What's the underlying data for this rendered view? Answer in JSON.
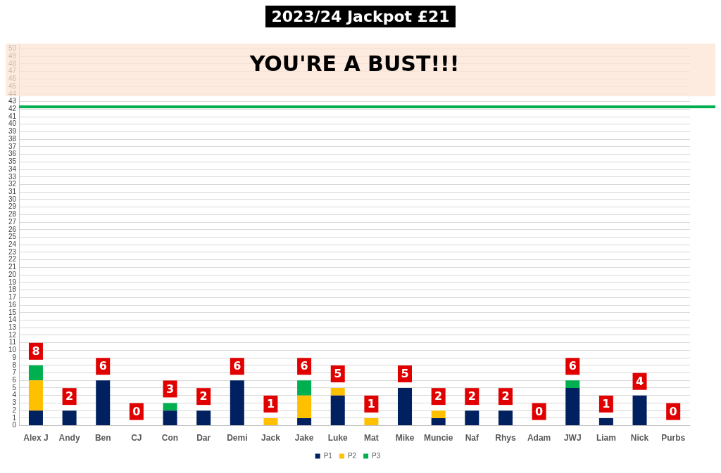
{
  "chart_data": {
    "type": "bar",
    "title": "2023/24 Jackpot £21",
    "stacked": true,
    "categories": [
      "Alex J",
      "Andy",
      "Ben",
      "CJ",
      "Con",
      "Dar",
      "Demi",
      "Jack",
      "Jake",
      "Luke",
      "Mat",
      "Mike",
      "Muncie",
      "Naf",
      "Rhys",
      "Adam",
      "JWJ",
      "Liam",
      "Nick",
      "Purbs"
    ],
    "series": [
      {
        "name": "P1",
        "color": "#002060",
        "values": [
          2,
          2,
          6,
          0,
          2,
          2,
          6,
          0,
          1,
          4,
          0,
          5,
          1,
          2,
          2,
          0,
          5,
          1,
          4,
          0
        ]
      },
      {
        "name": "P2",
        "color": "#ffc000",
        "values": [
          4,
          0,
          0,
          0,
          0,
          0,
          0,
          1,
          3,
          1,
          1,
          0,
          1,
          0,
          0,
          0,
          0,
          0,
          0,
          0
        ]
      },
      {
        "name": "P3",
        "color": "#00b050",
        "values": [
          2,
          0,
          0,
          0,
          1,
          0,
          0,
          0,
          2,
          0,
          0,
          0,
          0,
          0,
          0,
          0,
          1,
          0,
          0,
          0
        ]
      }
    ],
    "totals": [
      "8",
      "2",
      "6",
      "0",
      "3",
      "2",
      "6",
      "1",
      "6",
      "5",
      "1",
      "5",
      "2",
      "2",
      "2",
      "0",
      "6",
      "1",
      "4",
      "0"
    ],
    "ylim": [
      0,
      50.7
    ],
    "yticks": [
      0,
      1,
      2,
      3,
      4,
      5,
      6,
      7,
      8,
      9,
      10,
      11,
      12,
      13,
      14,
      15,
      16,
      17,
      18,
      19,
      20,
      21,
      22,
      23,
      24,
      25,
      26,
      27,
      28,
      29,
      30,
      31,
      32,
      33,
      34,
      35,
      36,
      37,
      38,
      39,
      40,
      41,
      42,
      43,
      44,
      45,
      46,
      47,
      48,
      49,
      50
    ],
    "grid": "y",
    "legend": "bottom",
    "ref_lines": [
      {
        "axis": "y",
        "value": 42.3,
        "color": "#00b050"
      }
    ],
    "bands": [
      {
        "axis": "y",
        "from": 43.7,
        "to": 50.7,
        "label": "YOU'RE A BUST!!!",
        "color": "#fce4d6"
      }
    ]
  }
}
